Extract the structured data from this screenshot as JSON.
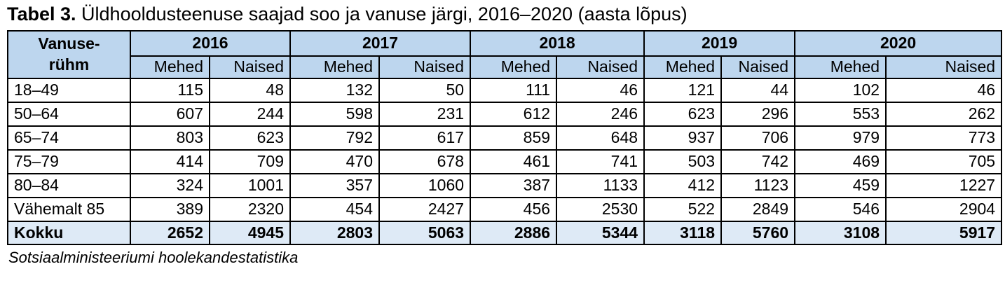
{
  "title": {
    "label": "Tabel 3.",
    "text": " Üldhooldusteenuse saajad soo ja vanuse järgi, 2016–2020 (aasta lõpus)"
  },
  "table": {
    "corner_header_lines": [
      "Vanuse-",
      "rühm"
    ],
    "years": [
      "2016",
      "2017",
      "2018",
      "2019",
      "2020"
    ],
    "sub_headers": [
      "Mehed",
      "Naised"
    ],
    "rows": [
      {
        "label": "18–49",
        "values": [
          115,
          48,
          132,
          50,
          111,
          46,
          121,
          44,
          102,
          46
        ]
      },
      {
        "label": "50–64",
        "values": [
          607,
          244,
          598,
          231,
          612,
          246,
          623,
          296,
          553,
          262
        ]
      },
      {
        "label": "65–74",
        "values": [
          803,
          623,
          792,
          617,
          859,
          648,
          937,
          706,
          979,
          773
        ]
      },
      {
        "label": "75–79",
        "values": [
          414,
          709,
          470,
          678,
          461,
          741,
          503,
          742,
          469,
          705
        ]
      },
      {
        "label": "80–84",
        "values": [
          324,
          1001,
          357,
          1060,
          387,
          1133,
          412,
          1123,
          459,
          1227
        ]
      },
      {
        "label": "Vähemalt 85",
        "values": [
          389,
          2320,
          454,
          2427,
          456,
          2530,
          522,
          2849,
          546,
          2904
        ]
      }
    ],
    "total_row": {
      "label": "Kokku",
      "values": [
        2652,
        4945,
        2803,
        5063,
        2886,
        5344,
        3118,
        5760,
        3108,
        5917
      ]
    }
  },
  "source": "Sotsiaalministeeriumi hoolekandestatistika",
  "colors": {
    "header_bg": "#bdd6ee",
    "total_bg": "#deeaf6",
    "border": "#000000"
  }
}
